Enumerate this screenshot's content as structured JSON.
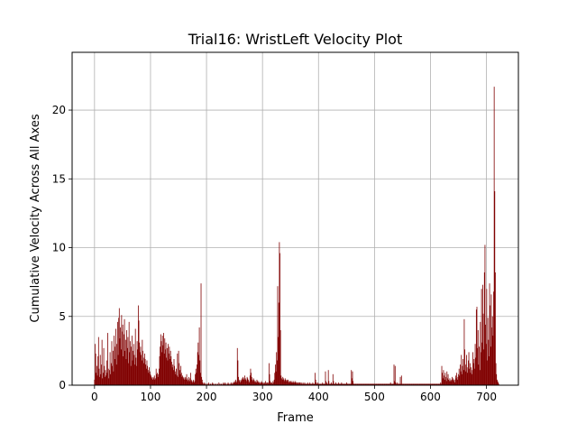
{
  "chart_data": {
    "type": "bar",
    "title": "Trial16: WristLeft Velocity Plot",
    "xlabel": "Frame",
    "ylabel": "Cumulative Velocity Across All Axes",
    "xlim": [
      -40,
      757
    ],
    "ylim": [
      0,
      24.2
    ],
    "xticks": [
      0,
      100,
      200,
      300,
      400,
      500,
      600,
      700
    ],
    "yticks": [
      0,
      5,
      10,
      15,
      20
    ],
    "grid": true,
    "bar_color": "#800000",
    "frame_count": 723,
    "series": [
      {
        "values": [
          0.4,
          3.0,
          2.3,
          0.9,
          1.4,
          0.7,
          2.1,
          3.5,
          1.2,
          0.6,
          2.2,
          0.8,
          1.5,
          3.3,
          0.5,
          0.9,
          2.7,
          1.4,
          0.6,
          1.1,
          0.7,
          1.8,
          0.9,
          3.8,
          1.2,
          0.5,
          1.1,
          2.4,
          0.8,
          1.6,
          3.2,
          1.4,
          2.5,
          1.0,
          3.6,
          1.9,
          2.8,
          4.1,
          1.5,
          3.0,
          4.6,
          2.2,
          4.9,
          5.6,
          3.4,
          4.2,
          2.6,
          5.1,
          3.9,
          4.4,
          2.1,
          3.7,
          4.8,
          2.5,
          3.3,
          1.9,
          4.0,
          2.7,
          3.5,
          1.6,
          4.6,
          2.4,
          3.2,
          1.4,
          2.8,
          3.6,
          1.8,
          2.5,
          3.0,
          2.2,
          1.5,
          4.1,
          2.0,
          1.4,
          3.2,
          2.6,
          5.8,
          4.7,
          3.1,
          2.4,
          2.8,
          2.2,
          1.8,
          3.3,
          2.5,
          2.0,
          1.6,
          2.3,
          1.9,
          1.5,
          1.2,
          1.8,
          1.4,
          1.1,
          0.9,
          1.3,
          1.0,
          0.8,
          0.7,
          0.6,
          0.5,
          0.4,
          0.6,
          0.5,
          0.7,
          0.4,
          0.5,
          1.2,
          0.8,
          0.9,
          0.6,
          0.8,
          1.2,
          2.1,
          2.8,
          3.7,
          3.2,
          2.4,
          3.6,
          2.9,
          3.8,
          2.3,
          3.4,
          2.6,
          3.1,
          2.0,
          2.7,
          1.8,
          3.0,
          2.3,
          2.8,
          1.9,
          2.5,
          2.1,
          1.7,
          1.3,
          1.5,
          1.1,
          1.9,
          1.4,
          1.0,
          0.8,
          1.2,
          0.7,
          2.3,
          0.6,
          2.5,
          1.6,
          1.1,
          0.8,
          1.4,
          0.9,
          0.6,
          0.7,
          0.5,
          0.6,
          0.4,
          0.5,
          0.6,
          0.4,
          0.8,
          0.5,
          0.3,
          0.4,
          0.6,
          0.3,
          0.5,
          0.9,
          0.4,
          0.3,
          0.2,
          0.3,
          0.4,
          0.2,
          0.3,
          0.8,
          1.2,
          0.9,
          1.5,
          2.4,
          3.1,
          2.2,
          4.2,
          1.8,
          0.9,
          7.4,
          0.6,
          0.4,
          0.2,
          0.1,
          0.1,
          0.2,
          0.1,
          0.1,
          0.0,
          0.1,
          0.0,
          0.1,
          0.2,
          0.1,
          0.0,
          0.1,
          0.1,
          0.0,
          0.1,
          0.2,
          0.1,
          0.1,
          0.0,
          0.1,
          0.0,
          0.1,
          0.0,
          0.1,
          0.1,
          0.0,
          0.2,
          0.1,
          0.0,
          0.1,
          0.1,
          0.1,
          0.0,
          0.1,
          0.2,
          0.1,
          0.1,
          0.2,
          0.1,
          0.0,
          0.1,
          0.1,
          0.2,
          0.1,
          0.1,
          0.0,
          0.1,
          0.2,
          0.1,
          0.1,
          0.2,
          0.1,
          0.2,
          0.3,
          0.2,
          0.4,
          0.3,
          0.2,
          2.7,
          1.8,
          0.6,
          0.4,
          0.3,
          0.2,
          0.4,
          0.3,
          0.5,
          0.4,
          0.6,
          0.5,
          0.4,
          0.7,
          0.5,
          0.4,
          0.3,
          0.6,
          0.5,
          0.4,
          0.3,
          0.2,
          0.7,
          1.2,
          0.9,
          0.6,
          0.4,
          0.3,
          0.5,
          0.4,
          0.3,
          0.2,
          0.3,
          0.2,
          0.4,
          0.3,
          0.2,
          0.3,
          0.2,
          0.2,
          0.1,
          0.2,
          0.3,
          0.2,
          0.1,
          0.2,
          0.1,
          0.2,
          0.1,
          0.3,
          0.2,
          0.1,
          0.2,
          0.1,
          0.2,
          1.6,
          0.8,
          0.3,
          0.2,
          0.1,
          0.2,
          0.1,
          0.3,
          0.2,
          0.4,
          0.9,
          1.5,
          1.0,
          2.4,
          1.8,
          7.2,
          3.5,
          6.0,
          10.4,
          9.6,
          4.0,
          0.7,
          0.5,
          0.4,
          0.6,
          0.5,
          0.4,
          0.3,
          0.5,
          0.4,
          0.3,
          0.4,
          0.3,
          0.4,
          0.3,
          0.2,
          0.3,
          0.2,
          0.3,
          0.2,
          0.3,
          0.2,
          0.2,
          0.3,
          0.2,
          0.2,
          0.3,
          0.2,
          0.2,
          0.1,
          0.2,
          0.2,
          0.1,
          0.2,
          0.2,
          0.1,
          0.2,
          0.1,
          0.1,
          0.2,
          0.1,
          0.1,
          0.2,
          0.1,
          0.1,
          0.1,
          0.1,
          0.2,
          0.1,
          0.1,
          0.1,
          0.2,
          0.1,
          0.1,
          0.1,
          0.1,
          0.2,
          0.1,
          0.1,
          0.1,
          0.9,
          0.4,
          0.2,
          0.1,
          0.1,
          0.2,
          0.1,
          0.1,
          0.1,
          0.1,
          0.1,
          0.1,
          0.1,
          0.2,
          0.1,
          0.1,
          0.1,
          0.1,
          1.0,
          0.3,
          0.2,
          0.1,
          0.1,
          1.1,
          0.3,
          0.1,
          0.1,
          0.1,
          0.2,
          0.1,
          0.1,
          0.8,
          0.3,
          0.1,
          0.1,
          0.1,
          0.2,
          0.1,
          0.1,
          0.1,
          0.1,
          0.2,
          0.1,
          0.1,
          0.1,
          0.1,
          0.2,
          0.1,
          0.1,
          0.1,
          0.1,
          0.1,
          0.1,
          0.1,
          0.1,
          0.2,
          0.1,
          0.1,
          0.1,
          0.1,
          0.1,
          0.1,
          0.1,
          1.1,
          0.5,
          1.0,
          0.3,
          0.1,
          0.1,
          0.1,
          0.1,
          0.1,
          0.1,
          0.1,
          0.1,
          0.1,
          0.1,
          0.1,
          0.1,
          0.1,
          0.1,
          0.1,
          0.1,
          0.1,
          0.1,
          0.1,
          0.1,
          0.1,
          0.1,
          0.1,
          0.1,
          0.1,
          0.1,
          0.1,
          0.1,
          0.1,
          0.1,
          0.1,
          0.1,
          0.1,
          0.1,
          0.1,
          0.1,
          0.1,
          0.1,
          0.1,
          0.1,
          0.1,
          0.1,
          0.1,
          0.1,
          0.1,
          0.1,
          0.1,
          0.1,
          0.1,
          0.1,
          0.1,
          0.1,
          0.1,
          0.1,
          0.1,
          0.1,
          0.1,
          0.1,
          0.1,
          0.1,
          0.1,
          0.1,
          0.1,
          0.1,
          0.2,
          0.1,
          0.1,
          0.1,
          0.1,
          0.1,
          1.5,
          0.3,
          1.4,
          0.2,
          0.1,
          0.1,
          0.2,
          0.1,
          0.1,
          0.1,
          0.1,
          0.6,
          0.1,
          0.7,
          0.1,
          0.1,
          0.1,
          0.1,
          0.1,
          0.1,
          0.1,
          0.1,
          0.1,
          0.1,
          0.1,
          0.1,
          0.1,
          0.1,
          0.1,
          0.1,
          0.1,
          0.1,
          0.1,
          0.1,
          0.1,
          0.1,
          0.1,
          0.1,
          0.1,
          0.1,
          0.1,
          0.1,
          0.1,
          0.1,
          0.1,
          0.1,
          0.1,
          0.1,
          0.1,
          0.1,
          0.1,
          0.1,
          0.1,
          0.1,
          0.1,
          0.1,
          0.1,
          0.1,
          0.1,
          0.1,
          0.1,
          0.1,
          0.1,
          0.1,
          0.1,
          0.1,
          0.1,
          0.1,
          0.1,
          0.1,
          0.1,
          0.1,
          0.1,
          0.1,
          0.1,
          0.1,
          0.1,
          0.1,
          0.1,
          0.1,
          0.1,
          0.2,
          0.1,
          1.4,
          0.9,
          0.5,
          1.1,
          0.7,
          0.4,
          0.9,
          0.6,
          0.3,
          1.0,
          0.5,
          0.8,
          0.4,
          0.3,
          0.5,
          0.3,
          0.4,
          0.3,
          0.6,
          0.4,
          0.5,
          0.3,
          0.4,
          0.2,
          0.7,
          0.5,
          0.9,
          0.4,
          0.6,
          0.8,
          1.2,
          0.7,
          1.5,
          1.0,
          2.2,
          0.8,
          1.4,
          1.9,
          1.1,
          4.8,
          2.6,
          1.5,
          1.0,
          2.2,
          1.3,
          0.9,
          1.8,
          2.4,
          1.2,
          1.6,
          0.9,
          1.3,
          0.8,
          1.1,
          2.4,
          1.6,
          1.9,
          1.2,
          3.0,
          2.0,
          5.5,
          5.7,
          2.7,
          4.0,
          1.5,
          2.8,
          1.1,
          4.6,
          2.4,
          7.0,
          3.1,
          7.3,
          5.2,
          2.6,
          8.2,
          10.2,
          4.4,
          3.0,
          7.0,
          1.8,
          4.9,
          3.3,
          2.1,
          7.4,
          5.8,
          2.8,
          6.6,
          4.2,
          5.0,
          3.6,
          6.8,
          21.7,
          14.1,
          8.2,
          1.6,
          0.8,
          0.4,
          0.3,
          0.2,
          0.1
        ]
      }
    ]
  }
}
